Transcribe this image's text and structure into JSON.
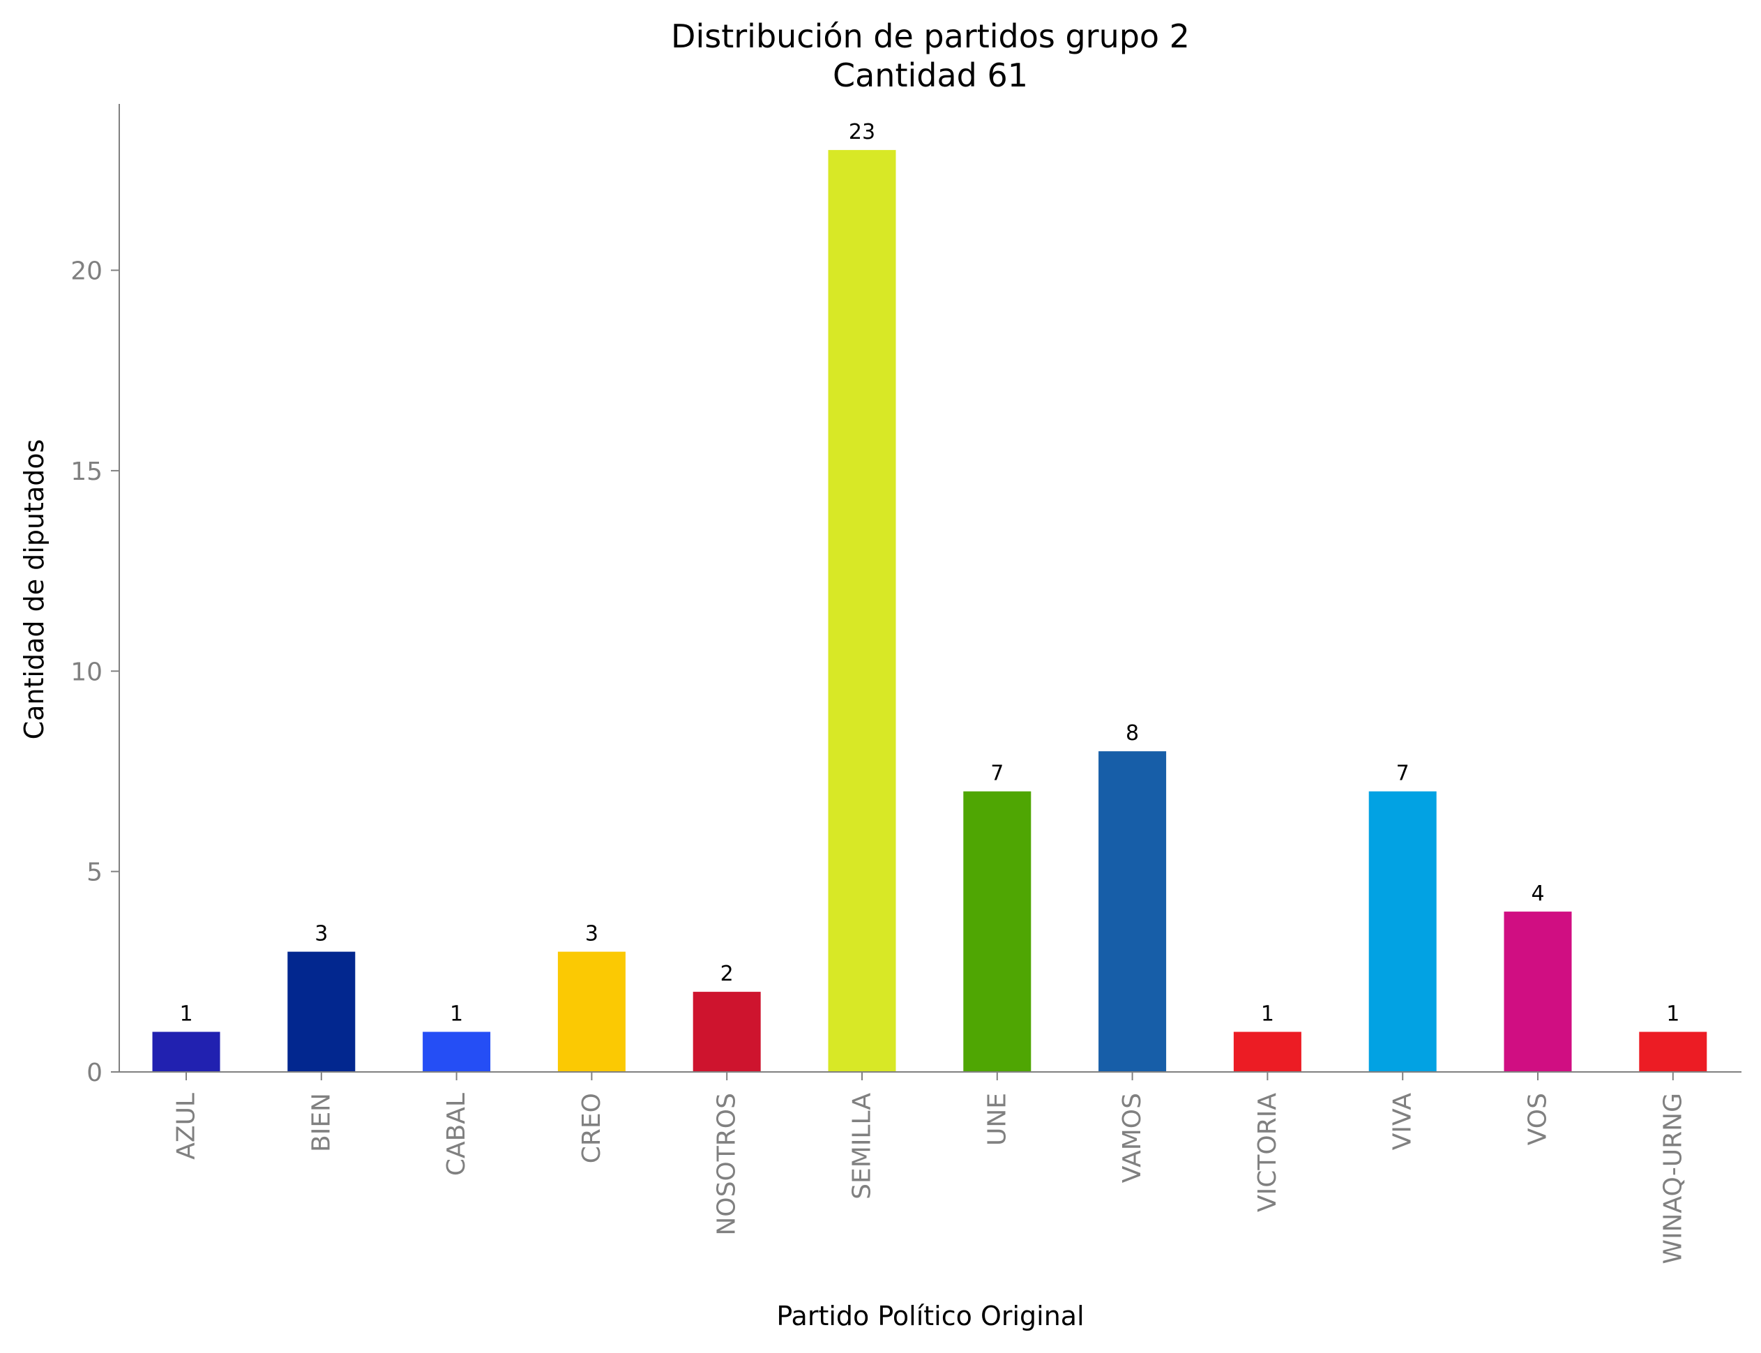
{
  "chart_data": {
    "type": "bar",
    "title": "Distribución de partidos grupo 2",
    "subtitle": "Cantidad 61",
    "xlabel": "Partido Político Original",
    "ylabel": "Cantidad de diputados",
    "categories": [
      "AZUL",
      "BIEN",
      "CABAL",
      "CREO",
      "NOSOTROS",
      "SEMILLA",
      "UNE",
      "VAMOS",
      "VICTORIA",
      "VIVA",
      "VOS",
      "WINAQ-URNG"
    ],
    "values": [
      1,
      3,
      1,
      3,
      2,
      23,
      7,
      8,
      1,
      7,
      4,
      1
    ],
    "data_labels": [
      "1",
      "3",
      "1",
      "3",
      "2",
      "23",
      "7",
      "8",
      "1",
      "7",
      "4",
      "1"
    ],
    "colors": [
      "#2121b0",
      "#02278f",
      "#254ef5",
      "#fbc903",
      "#ce142e",
      "#d8e826",
      "#4fa603",
      "#175ea8",
      "#ec1c24",
      "#02a2e3",
      "#d00e82",
      "#ec1c24"
    ],
    "yticks": [
      0,
      5,
      10,
      15,
      20
    ],
    "ytick_labels": [
      "0",
      "5",
      "10",
      "15",
      "20"
    ],
    "ylim": [
      0,
      24.15
    ],
    "grid": false,
    "legend": "none",
    "axis_color": "#808080"
  }
}
